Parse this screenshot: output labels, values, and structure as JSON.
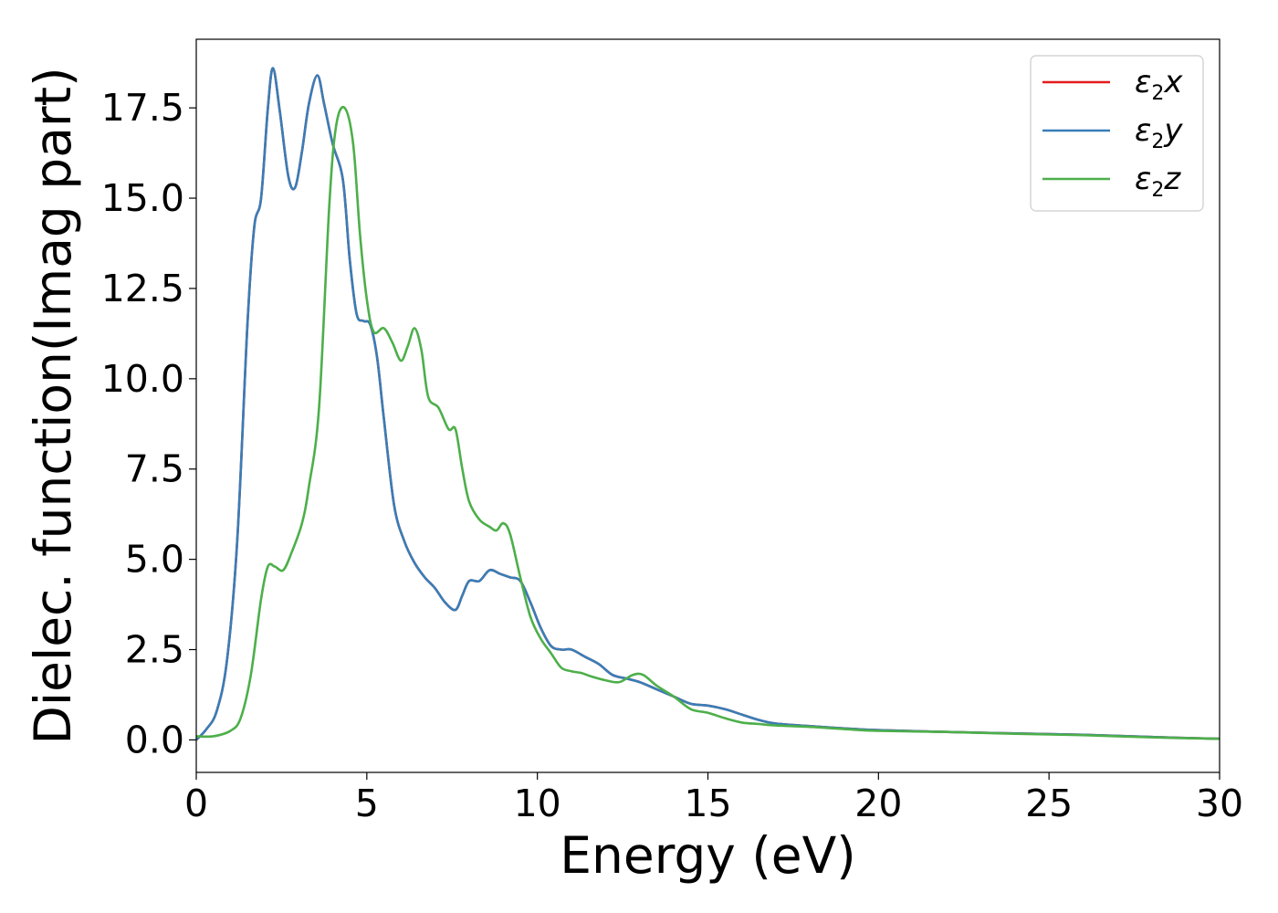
{
  "chart_data": {
    "type": "line",
    "xlabel": "Energy (eV)",
    "ylabel": "Dielec. function(Imag part)",
    "xlim": [
      0,
      30
    ],
    "ylim": [
      -0.9,
      19.4
    ],
    "x_ticks": [
      0,
      5,
      10,
      15,
      20,
      25,
      30
    ],
    "x_tick_labels": [
      "0",
      "5",
      "10",
      "15",
      "20",
      "25",
      "30"
    ],
    "y_ticks": [
      0.0,
      2.5,
      5.0,
      7.5,
      10.0,
      12.5,
      15.0,
      17.5
    ],
    "y_tick_labels": [
      "0.0",
      "2.5",
      "5.0",
      "7.5",
      "10.0",
      "12.5",
      "15.0",
      "17.5"
    ],
    "grid": false,
    "legend": "top-right",
    "series": [
      {
        "name": "ε2x",
        "symbol": "ε",
        "sub": "2",
        "suffix": "x",
        "color": "#e41a1c",
        "x": [
          0,
          0.3,
          0.6,
          0.9,
          1.2,
          1.5,
          1.7,
          1.9,
          2.1,
          2.25,
          2.45,
          2.7,
          2.9,
          3.1,
          3.3,
          3.55,
          3.75,
          4.0,
          4.3,
          4.5,
          4.7,
          4.9,
          5.1,
          5.3,
          5.5,
          5.8,
          6.1,
          6.4,
          6.7,
          7.0,
          7.3,
          7.6,
          7.8,
          8.0,
          8.3,
          8.6,
          8.9,
          9.2,
          9.5,
          9.8,
          10.1,
          10.4,
          10.7,
          11.0,
          11.4,
          11.8,
          12.2,
          12.6,
          13.0,
          13.5,
          14.0,
          14.5,
          15.0,
          15.5,
          16.0,
          16.5,
          17.0,
          18.0,
          19.0,
          20.0,
          22.0,
          24.0,
          26.0,
          28.0,
          30.0
        ],
        "y": [
          0.0,
          0.3,
          0.8,
          2.2,
          5.5,
          11.5,
          14.2,
          15.0,
          17.5,
          18.6,
          17.4,
          15.6,
          15.3,
          16.3,
          17.6,
          18.4,
          17.6,
          16.5,
          15.5,
          13.3,
          11.8,
          11.6,
          11.5,
          10.6,
          8.9,
          6.5,
          5.5,
          4.9,
          4.5,
          4.2,
          3.8,
          3.6,
          4.0,
          4.4,
          4.4,
          4.7,
          4.6,
          4.5,
          4.4,
          3.8,
          3.1,
          2.6,
          2.5,
          2.5,
          2.3,
          2.1,
          1.8,
          1.7,
          1.6,
          1.4,
          1.2,
          1.0,
          0.95,
          0.85,
          0.7,
          0.55,
          0.45,
          0.38,
          0.32,
          0.27,
          0.22,
          0.18,
          0.14,
          0.08,
          0.03
        ]
      },
      {
        "name": "ε2y",
        "symbol": "ε",
        "sub": "2",
        "suffix": "y",
        "color": "#377eb8",
        "x": [
          0,
          0.3,
          0.6,
          0.9,
          1.2,
          1.5,
          1.7,
          1.9,
          2.1,
          2.25,
          2.45,
          2.7,
          2.9,
          3.1,
          3.3,
          3.55,
          3.75,
          4.0,
          4.3,
          4.5,
          4.7,
          4.9,
          5.1,
          5.3,
          5.5,
          5.8,
          6.1,
          6.4,
          6.7,
          7.0,
          7.3,
          7.6,
          7.8,
          8.0,
          8.3,
          8.6,
          8.9,
          9.2,
          9.5,
          9.8,
          10.1,
          10.4,
          10.7,
          11.0,
          11.4,
          11.8,
          12.2,
          12.6,
          13.0,
          13.5,
          14.0,
          14.5,
          15.0,
          15.5,
          16.0,
          16.5,
          17.0,
          18.0,
          19.0,
          20.0,
          22.0,
          24.0,
          26.0,
          28.0,
          30.0
        ],
        "y": [
          0.0,
          0.3,
          0.8,
          2.2,
          5.5,
          11.5,
          14.2,
          15.0,
          17.5,
          18.6,
          17.4,
          15.6,
          15.3,
          16.3,
          17.6,
          18.4,
          17.6,
          16.5,
          15.5,
          13.3,
          11.8,
          11.6,
          11.5,
          10.6,
          8.9,
          6.5,
          5.5,
          4.9,
          4.5,
          4.2,
          3.8,
          3.6,
          4.0,
          4.4,
          4.4,
          4.7,
          4.6,
          4.5,
          4.4,
          3.8,
          3.1,
          2.6,
          2.5,
          2.5,
          2.3,
          2.1,
          1.8,
          1.7,
          1.6,
          1.4,
          1.2,
          1.0,
          0.95,
          0.85,
          0.7,
          0.55,
          0.45,
          0.38,
          0.32,
          0.27,
          0.22,
          0.18,
          0.14,
          0.08,
          0.03
        ]
      },
      {
        "name": "ε2z",
        "symbol": "ε",
        "sub": "2",
        "suffix": "z",
        "color": "#4daf4a",
        "x": [
          0,
          0.5,
          1.0,
          1.3,
          1.6,
          1.9,
          2.1,
          2.3,
          2.55,
          2.8,
          3.1,
          3.3,
          3.6,
          3.9,
          4.1,
          4.35,
          4.6,
          4.8,
          5.0,
          5.2,
          5.5,
          5.75,
          6.0,
          6.2,
          6.4,
          6.6,
          6.8,
          7.1,
          7.4,
          7.6,
          7.8,
          8.0,
          8.3,
          8.6,
          8.8,
          9.0,
          9.2,
          9.5,
          9.8,
          10.1,
          10.4,
          10.7,
          11.0,
          11.3,
          11.6,
          12.0,
          12.4,
          12.8,
          13.1,
          13.5,
          14.0,
          14.5,
          15.0,
          15.5,
          16.0,
          16.5,
          17.0,
          18.0,
          19.0,
          20.0,
          22.0,
          24.0,
          26.0,
          28.0,
          30.0
        ],
        "y": [
          0.1,
          0.1,
          0.25,
          0.6,
          1.8,
          3.9,
          4.8,
          4.8,
          4.7,
          5.2,
          6.0,
          7.0,
          9.2,
          14.8,
          17.0,
          17.5,
          16.5,
          14.0,
          12.2,
          11.3,
          11.4,
          11.0,
          10.5,
          10.9,
          11.4,
          10.8,
          9.5,
          9.2,
          8.6,
          8.6,
          7.5,
          6.6,
          6.1,
          5.9,
          5.8,
          6.0,
          5.7,
          4.5,
          3.4,
          2.8,
          2.4,
          2.0,
          1.9,
          1.85,
          1.75,
          1.65,
          1.6,
          1.8,
          1.8,
          1.5,
          1.2,
          0.85,
          0.75,
          0.6,
          0.48,
          0.44,
          0.4,
          0.36,
          0.3,
          0.25,
          0.22,
          0.17,
          0.13,
          0.07,
          0.03
        ]
      }
    ]
  }
}
